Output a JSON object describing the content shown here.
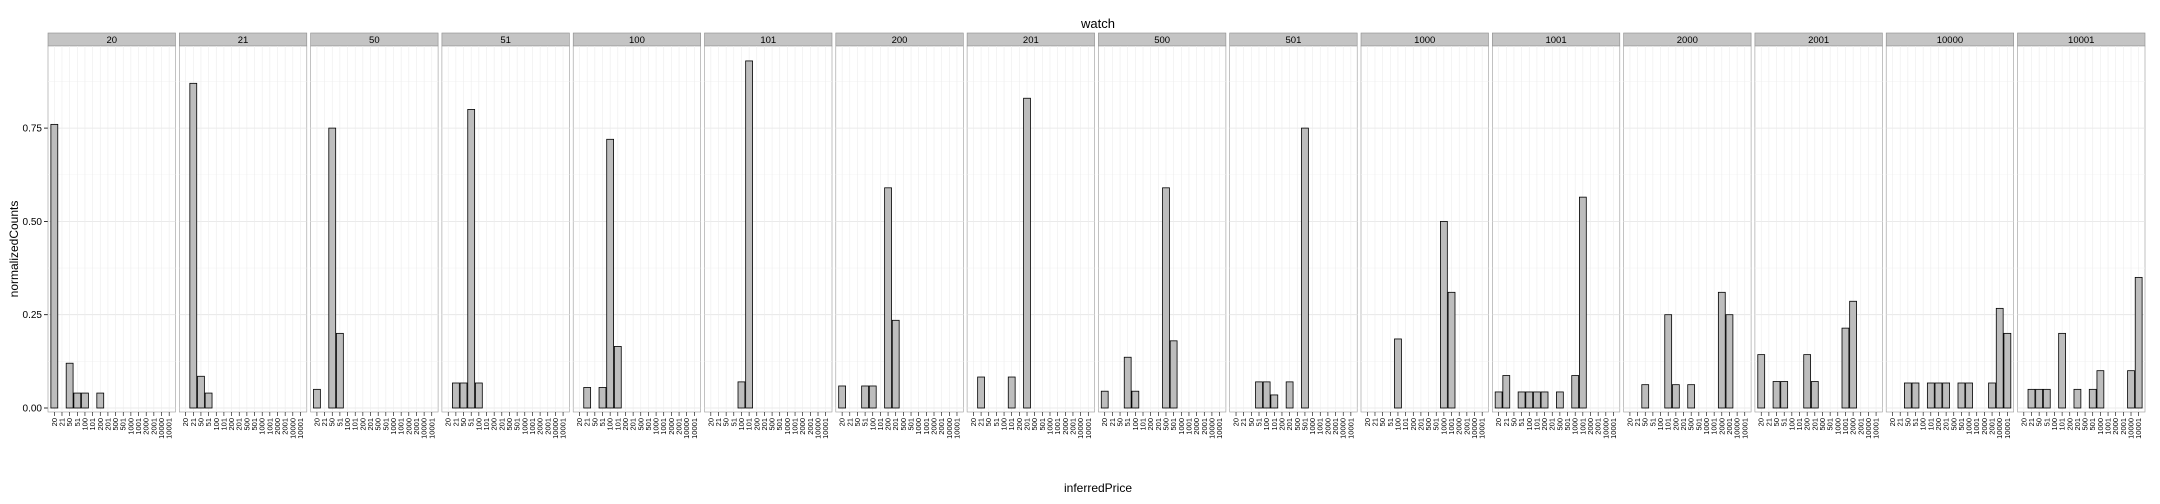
{
  "chart_data": {
    "type": "bar",
    "title": "watch",
    "xlabel": "inferredPrice",
    "ylabel": "normalizedCounts",
    "ylim": [
      0,
      0.97
    ],
    "yticks": [
      0.0,
      0.25,
      0.5,
      0.75
    ],
    "ytick_labels": [
      "0.00",
      "0.25",
      "0.50",
      "0.75"
    ],
    "categories": [
      "20",
      "21",
      "50",
      "51",
      "100",
      "101",
      "200",
      "201",
      "500",
      "501",
      "1000",
      "1001",
      "2000",
      "2001",
      "10000",
      "10001"
    ],
    "grid": true,
    "colors": {
      "bar_fill": "#bdbdbd",
      "bar_stroke": "#000000",
      "strip": "#c4c4c4",
      "grid": "#eeeeee"
    },
    "facets": [
      {
        "label": "20",
        "values": [
          0.76,
          0,
          0.12,
          0.04,
          0.04,
          0,
          0.04,
          0,
          0,
          0,
          0,
          0,
          0,
          0,
          0,
          0
        ]
      },
      {
        "label": "21",
        "values": [
          0,
          0.87,
          0.085,
          0.04,
          0,
          0,
          0,
          0,
          0,
          0,
          0,
          0,
          0,
          0,
          0,
          0
        ]
      },
      {
        "label": "50",
        "values": [
          0.05,
          0,
          0.75,
          0.2,
          0,
          0,
          0,
          0,
          0,
          0,
          0,
          0,
          0,
          0,
          0,
          0
        ]
      },
      {
        "label": "51",
        "values": [
          0,
          0.067,
          0.067,
          0.8,
          0.067,
          0,
          0,
          0,
          0,
          0,
          0,
          0,
          0,
          0,
          0,
          0
        ]
      },
      {
        "label": "100",
        "values": [
          0,
          0.055,
          0,
          0.055,
          0.72,
          0.165,
          0,
          0,
          0,
          0,
          0,
          0,
          0,
          0,
          0,
          0
        ]
      },
      {
        "label": "101",
        "values": [
          0,
          0,
          0,
          0,
          0.07,
          0.93,
          0,
          0,
          0,
          0,
          0,
          0,
          0,
          0,
          0,
          0
        ]
      },
      {
        "label": "200",
        "values": [
          0.059,
          0,
          0,
          0.059,
          0.059,
          0,
          0.59,
          0.235,
          0,
          0,
          0,
          0,
          0,
          0,
          0,
          0
        ]
      },
      {
        "label": "201",
        "values": [
          0,
          0.083,
          0,
          0,
          0,
          0.083,
          0,
          0.83,
          0,
          0,
          0,
          0,
          0,
          0,
          0,
          0
        ]
      },
      {
        "label": "500",
        "values": [
          0.045,
          0,
          0,
          0.136,
          0.045,
          0,
          0,
          0,
          0.59,
          0.18,
          0,
          0,
          0,
          0,
          0,
          0
        ]
      },
      {
        "label": "501",
        "values": [
          0,
          0,
          0,
          0.07,
          0.07,
          0.035,
          0,
          0.07,
          0,
          0.75,
          0,
          0,
          0,
          0,
          0,
          0
        ]
      },
      {
        "label": "1000",
        "values": [
          0,
          0,
          0,
          0,
          0.185,
          0,
          0,
          0,
          0,
          0,
          0.5,
          0.31,
          0,
          0,
          0,
          0
        ]
      },
      {
        "label": "1001",
        "values": [
          0.043,
          0.087,
          0,
          0.043,
          0.043,
          0.043,
          0.043,
          0,
          0.043,
          0,
          0.087,
          0.565,
          0,
          0,
          0,
          0
        ]
      },
      {
        "label": "2000",
        "values": [
          0,
          0,
          0.0625,
          0,
          0,
          0.25,
          0.0625,
          0,
          0.0625,
          0,
          0,
          0,
          0.31,
          0.25,
          0,
          0
        ]
      },
      {
        "label": "2001",
        "values": [
          0.143,
          0,
          0.071,
          0.071,
          0,
          0,
          0.143,
          0.071,
          0,
          0,
          0,
          0.214,
          0.286,
          0,
          0,
          0
        ]
      },
      {
        "label": "10000",
        "values": [
          0,
          0,
          0.067,
          0.067,
          0,
          0.067,
          0.067,
          0.067,
          0,
          0.067,
          0.067,
          0,
          0,
          0.067,
          0.267,
          0.2
        ]
      },
      {
        "label": "10001",
        "values": [
          0,
          0.05,
          0.05,
          0.05,
          0,
          0.2,
          0,
          0.05,
          0,
          0.05,
          0.1,
          0,
          0,
          0,
          0.1,
          0.35
        ]
      }
    ]
  }
}
